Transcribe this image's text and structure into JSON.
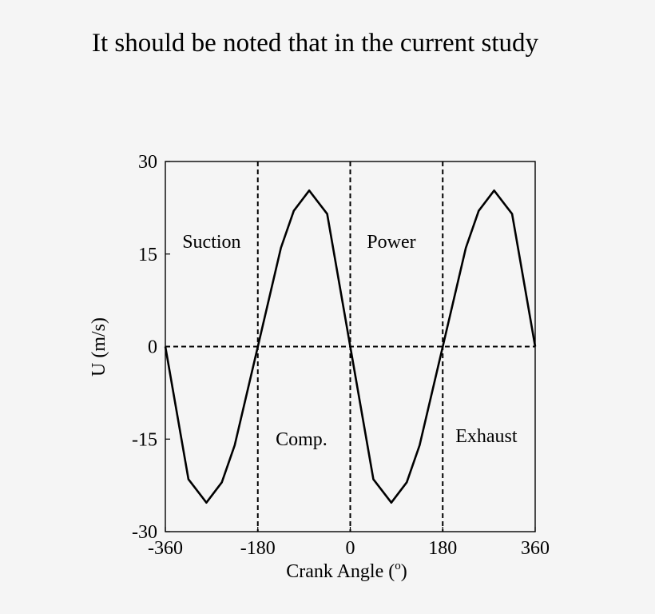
{
  "document": {
    "caption_text": "It should be noted that in the current study"
  },
  "chart_data": {
    "type": "line",
    "xlabel": "Crank Angle (",
    "xlabel_sup": "o",
    "xlabel_close": ")",
    "ylabel": "U (m/s)",
    "xlim": [
      -360,
      360
    ],
    "ylim": [
      -30,
      30
    ],
    "x_ticks": [
      -360,
      -180,
      0,
      180,
      360
    ],
    "x_tick_labels": [
      "-360",
      "-180",
      "0",
      "180",
      "360"
    ],
    "y_ticks": [
      30,
      15,
      0,
      -15,
      -30
    ],
    "y_tick_labels": [
      "30",
      "15",
      "0",
      "-15",
      "-30"
    ],
    "grid": false,
    "series": [
      {
        "x": [
          -360,
          -315,
          -280,
          -250,
          -225,
          -180,
          -135,
          -110,
          -80,
          -45,
          0,
          45,
          80,
          110,
          135,
          180,
          225,
          250,
          280,
          315,
          360
        ],
        "values": [
          0,
          -21.5,
          -25.3,
          -22,
          -16,
          0,
          16,
          22,
          25.3,
          21.5,
          0,
          -21.5,
          -25.3,
          -22,
          -16,
          0,
          16,
          22,
          25.3,
          21.5,
          0
        ],
        "color": "#000000",
        "style": "solid"
      }
    ],
    "reference_lines": {
      "vertical_x": [
        -180,
        0,
        180
      ],
      "horizontal_y": [
        0
      ],
      "style": "dashed"
    },
    "annotations": [
      {
        "text": "Suction",
        "x": -270,
        "y": 16
      },
      {
        "text": "Power",
        "x": 80,
        "y": 16
      },
      {
        "text": "Comp.",
        "x": -95,
        "y": -16
      },
      {
        "text": "Exhaust",
        "x": 265,
        "y": -15.5
      }
    ]
  }
}
